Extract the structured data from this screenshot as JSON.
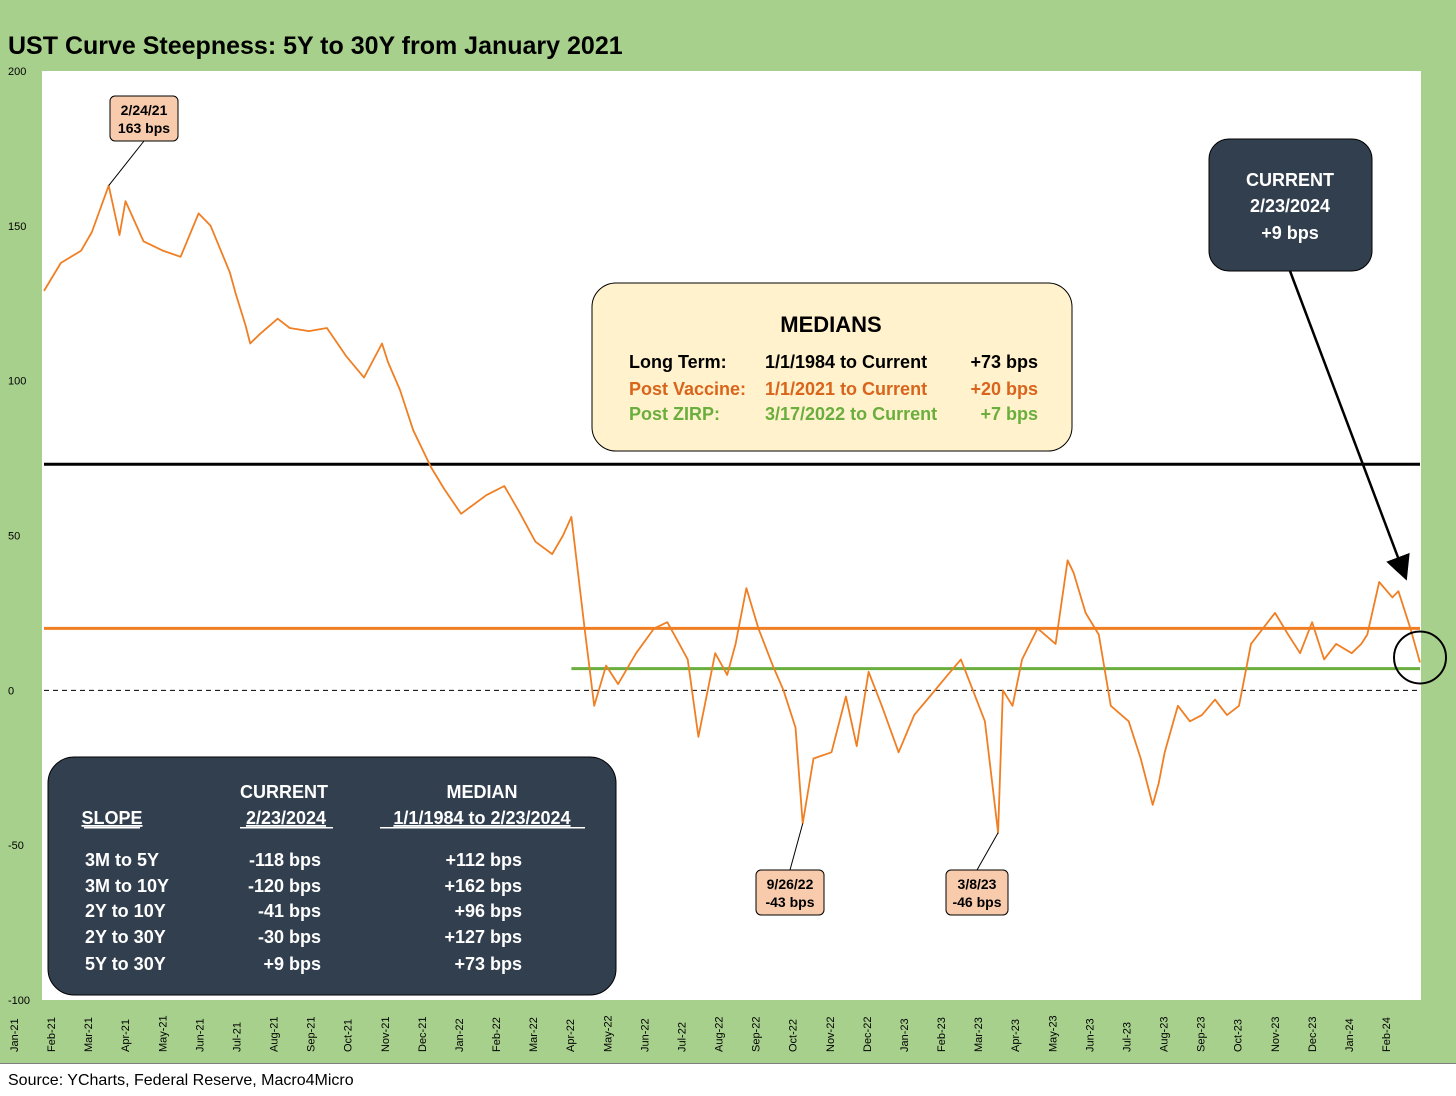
{
  "chart_data": {
    "type": "line",
    "title": "UST Curve Steepness: 5Y to 30Y from January 2021",
    "source": "Source: YCharts, Federal Reserve, Macro4Micro",
    "ylim": [
      -100,
      200
    ],
    "y_ticks": [
      "200",
      "150",
      "100",
      "50",
      "0",
      "-50",
      "-100"
    ],
    "x_ticks": [
      "Jan-21",
      "Feb-21",
      "Mar-21",
      "Apr-21",
      "May-21",
      "Jun-21",
      "Jul-21",
      "Aug-21",
      "Sep-21",
      "Oct-21",
      "Nov-21",
      "Dec-21",
      "Jan-22",
      "Feb-22",
      "Mar-22",
      "Apr-22",
      "May-22",
      "Jun-22",
      "Jul-22",
      "Aug-22",
      "Sep-22",
      "Oct-22",
      "Nov-22",
      "Dec-22",
      "Jan-23",
      "Feb-23",
      "Mar-23",
      "Apr-23",
      "May-23",
      "Jun-23",
      "Jul-23",
      "Aug-23",
      "Sep-23",
      "Oct-23",
      "Nov-23",
      "Dec-23",
      "Jan-24",
      "Feb-24"
    ],
    "series": [
      {
        "color": "#F07F24",
        "x": [
          "2021-01-01",
          "2021-01-15",
          "2021-02-01",
          "2021-02-10",
          "2021-02-24",
          "2021-03-05",
          "2021-03-10",
          "2021-03-25",
          "2021-04-10",
          "2021-04-25",
          "2021-05-10",
          "2021-05-20",
          "2021-06-05",
          "2021-06-10",
          "2021-06-18",
          "2021-06-22",
          "2021-06-30",
          "2021-07-15",
          "2021-07-25",
          "2021-08-10",
          "2021-08-25",
          "2021-09-10",
          "2021-09-25",
          "2021-10-10",
          "2021-10-15",
          "2021-10-25",
          "2021-11-05",
          "2021-11-20",
          "2021-12-01",
          "2021-12-15",
          "2022-01-05",
          "2022-01-20",
          "2022-02-01",
          "2022-02-15",
          "2022-03-01",
          "2022-03-10",
          "2022-03-17",
          "2022-03-28",
          "2022-04-05",
          "2022-04-15",
          "2022-04-25",
          "2022-05-10",
          "2022-05-25",
          "2022-06-05",
          "2022-06-15",
          "2022-06-22",
          "2022-07-01",
          "2022-07-15",
          "2022-07-25",
          "2022-08-01",
          "2022-08-10",
          "2022-08-20",
          "2022-09-01",
          "2022-09-10",
          "2022-09-20",
          "2022-09-26",
          "2022-10-05",
          "2022-10-20",
          "2022-11-01",
          "2022-11-10",
          "2022-11-20",
          "2022-12-01",
          "2022-12-15",
          "2022-12-28",
          "2023-01-10",
          "2023-01-25",
          "2023-02-05",
          "2023-02-15",
          "2023-02-25",
          "2023-03-08",
          "2023-03-12",
          "2023-03-20",
          "2023-03-28",
          "2023-04-10",
          "2023-04-25",
          "2023-05-05",
          "2023-05-10",
          "2023-05-20",
          "2023-05-31",
          "2023-06-10",
          "2023-06-25",
          "2023-07-05",
          "2023-07-15",
          "2023-07-20",
          "2023-07-25",
          "2023-08-05",
          "2023-08-15",
          "2023-08-25",
          "2023-09-05",
          "2023-09-15",
          "2023-09-25",
          "2023-10-05",
          "2023-10-15",
          "2023-10-25",
          "2023-11-05",
          "2023-11-15",
          "2023-11-25",
          "2023-12-05",
          "2023-12-15",
          "2023-12-28",
          "2024-01-05",
          "2024-01-10",
          "2024-01-20",
          "2024-01-31",
          "2024-02-05",
          "2024-02-15",
          "2024-02-23"
        ],
        "y": [
          129,
          138,
          142,
          148,
          163,
          147,
          158,
          145,
          142,
          140,
          154,
          150,
          135,
          128,
          118,
          112,
          115,
          120,
          117,
          116,
          117,
          108,
          101,
          112,
          106,
          97,
          84,
          72,
          65,
          57,
          63,
          66,
          58,
          48,
          44,
          50,
          56,
          20,
          -5,
          8,
          2,
          12,
          20,
          22,
          15,
          10,
          -15,
          12,
          5,
          15,
          33,
          20,
          8,
          0,
          -12,
          -43,
          -22,
          -20,
          -2,
          -18,
          6,
          -5,
          -20,
          -8,
          -2,
          5,
          10,
          0,
          -10,
          -46,
          0,
          -5,
          10,
          20,
          15,
          42,
          38,
          25,
          18,
          -5,
          -10,
          -22,
          -37,
          -30,
          -20,
          -5,
          -10,
          -8,
          -3,
          -8,
          -5,
          15,
          20,
          25,
          18,
          12,
          22,
          10,
          15,
          12,
          15,
          18,
          35,
          30,
          32,
          20,
          9
        ]
      }
    ],
    "reference_lines": [
      {
        "value": 73,
        "color": "#000000",
        "label": "Long Term median"
      },
      {
        "value": 20,
        "color": "#F07F24",
        "label": "Post Vaccine median"
      },
      {
        "value": 7,
        "color": "#6AAE3E",
        "label": "Post ZIRP median",
        "start": "2022-03-17"
      },
      {
        "value": 0,
        "color": "#000000",
        "style": "dashed"
      }
    ],
    "annotations": [
      {
        "date": "2/24/21",
        "value": "163 bps",
        "x": "2021-02-24",
        "y": 163
      },
      {
        "date": "9/26/22",
        "value": "-43 bps",
        "x": "2022-09-26",
        "y": -43
      },
      {
        "date": "3/8/23",
        "value": "-46 bps",
        "x": "2023-03-08",
        "y": -46
      }
    ],
    "current": {
      "line1": "CURRENT",
      "line2": "2/23/2024",
      "line3": "+9 bps",
      "x": "2024-02-23",
      "y": 9
    },
    "medians_box": {
      "title": "MEDIANS",
      "rows": [
        {
          "label": "Long Term:",
          "period": "1/1/1984 to Current",
          "value": "+73 bps",
          "color": "#000000"
        },
        {
          "label": "Post Vaccine:",
          "period": "1/1/2021 to Current",
          "value": "+20 bps",
          "color": "#D9641B"
        },
        {
          "label": "Post ZIRP:",
          "period": "3/17/2022 to Current",
          "value": "+7 bps",
          "color": "#6AAE3E"
        }
      ]
    },
    "slope_table": {
      "header": {
        "col2_line1": "CURRENT",
        "col3_line1": "MEDIAN",
        "col1": "SLOPE",
        "col2": "2/23/2024",
        "col3": "1/1/1984 to 2/23/2024"
      },
      "rows": [
        {
          "slope": "3M to 5Y",
          "current": "-118 bps",
          "median": "+112 bps"
        },
        {
          "slope": "3M to 10Y",
          "current": "-120 bps",
          "median": "+162 bps"
        },
        {
          "slope": "2Y to 10Y",
          "current": "-41 bps",
          "median": "+96 bps"
        },
        {
          "slope": "2Y to 30Y",
          "current": "-30 bps",
          "median": "+127 bps"
        },
        {
          "slope": "5Y to 30Y",
          "current": "+9 bps",
          "median": "+73 bps"
        }
      ]
    }
  }
}
